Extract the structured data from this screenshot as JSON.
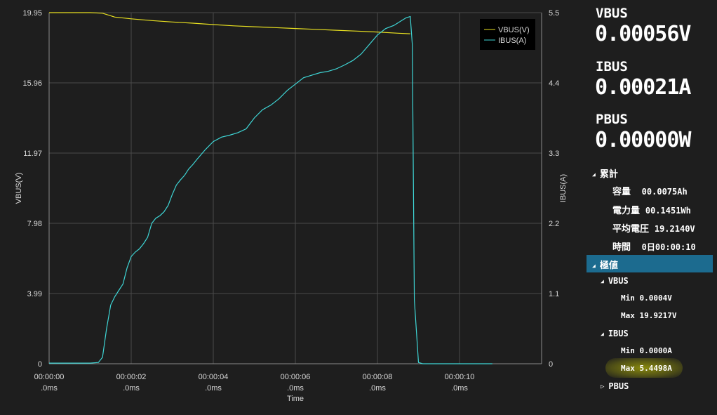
{
  "chart_data": {
    "type": "line",
    "xlabel": "Time",
    "ylabel_left": "VBUS(V)",
    "ylabel_right": "IBUS(A)",
    "x_ticks": [
      {
        "line1": "00:00:00",
        "line2": ".0ms"
      },
      {
        "line1": "00:00:02",
        "line2": ".0ms"
      },
      {
        "line1": "00:00:04",
        "line2": ".0ms"
      },
      {
        "line1": "00:00:06",
        "line2": ".0ms"
      },
      {
        "line1": "00:00:08",
        "line2": ".0ms"
      },
      {
        "line1": "00:00:10",
        "line2": ".0ms"
      }
    ],
    "xlim": [
      0,
      12.0
    ],
    "ylim_left": [
      0,
      19.95
    ],
    "ylim_right": [
      0,
      5.5
    ],
    "y_ticks_left": [
      "0",
      "3.99",
      "7.98",
      "11.97",
      "15.96",
      "19.95"
    ],
    "y_ticks_right": [
      "0",
      "1.1",
      "2.2",
      "3.3",
      "4.4",
      "5.5"
    ],
    "legend_position": "top-right",
    "series": [
      {
        "name": "VBUS(V)",
        "axis": "left",
        "color": "#e8e020",
        "x": [
          0,
          1.0,
          1.3,
          1.6,
          2.0,
          2.5,
          3.0,
          3.5,
          4.0,
          4.5,
          5.0,
          5.5,
          6.0,
          6.5,
          7.0,
          7.5,
          8.0,
          8.5,
          8.8
        ],
        "y": [
          19.95,
          19.95,
          19.92,
          19.7,
          19.6,
          19.5,
          19.42,
          19.35,
          19.27,
          19.2,
          19.15,
          19.1,
          19.05,
          19.0,
          18.95,
          18.9,
          18.85,
          18.78,
          18.75
        ]
      },
      {
        "name": "IBUS(A)",
        "axis": "right",
        "color": "#3fd6d6",
        "x": [
          0,
          0.5,
          1.0,
          1.2,
          1.3,
          1.4,
          1.5,
          1.6,
          1.7,
          1.8,
          1.9,
          2.0,
          2.1,
          2.2,
          2.3,
          2.4,
          2.5,
          2.6,
          2.7,
          2.8,
          2.9,
          3.0,
          3.1,
          3.2,
          3.3,
          3.4,
          3.5,
          3.6,
          3.8,
          4.0,
          4.2,
          4.4,
          4.6,
          4.8,
          5.0,
          5.2,
          5.4,
          5.6,
          5.8,
          6.0,
          6.2,
          6.4,
          6.6,
          6.8,
          7.0,
          7.2,
          7.4,
          7.6,
          7.8,
          8.0,
          8.2,
          8.4,
          8.6,
          8.7,
          8.8,
          8.85,
          8.9,
          9.0,
          9.1,
          9.5,
          10.0,
          10.5,
          10.8
        ],
        "y": [
          0.01,
          0.01,
          0.01,
          0.02,
          0.1,
          0.55,
          0.92,
          1.05,
          1.15,
          1.25,
          1.5,
          1.68,
          1.75,
          1.8,
          1.88,
          1.98,
          2.2,
          2.28,
          2.32,
          2.38,
          2.48,
          2.65,
          2.8,
          2.88,
          2.95,
          3.05,
          3.12,
          3.2,
          3.35,
          3.48,
          3.55,
          3.58,
          3.62,
          3.68,
          3.85,
          3.98,
          4.05,
          4.15,
          4.28,
          4.38,
          4.48,
          4.52,
          4.56,
          4.58,
          4.62,
          4.68,
          4.75,
          4.85,
          5.0,
          5.15,
          5.25,
          5.3,
          5.38,
          5.42,
          5.44,
          5.0,
          1.0,
          0.02,
          0.0,
          0.0,
          0.0,
          0.0,
          0.0
        ]
      }
    ]
  },
  "panel": {
    "vbus_label": "VBUS",
    "vbus_value": "0.00056V",
    "ibus_label": "IBUS",
    "ibus_value": "0.00021A",
    "pbus_label": "PBUS",
    "pbus_value": "0.00000W",
    "cumulative": {
      "title": "累計",
      "capacity_label": "容量",
      "capacity_value": "00.0075Ah",
      "energy_label": "電力量",
      "energy_value": "00.1451Wh",
      "avg_voltage_label": "平均電圧",
      "avg_voltage_value": "19.2140V",
      "time_label": "時間",
      "time_value": "0日00:00:10"
    },
    "extremes": {
      "title": "極値",
      "vbus_title": "VBUS",
      "vbus_min": "Min 0.0004V",
      "vbus_max": "Max 19.9217V",
      "ibus_title": "IBUS",
      "ibus_min": "Min 0.0000A",
      "ibus_max": "Max 5.4498A",
      "pbus_title": "PBUS"
    },
    "colors": {
      "highlight": "#1c6b8f",
      "annotation": "#e2e200"
    }
  }
}
